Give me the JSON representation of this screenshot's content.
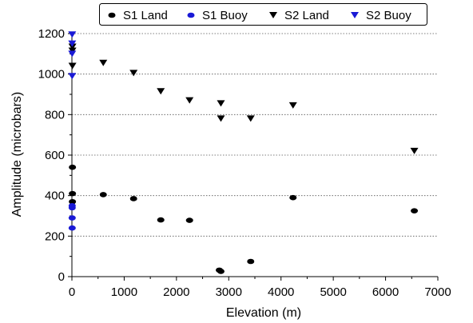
{
  "chart_data": {
    "type": "scatter",
    "title": "",
    "xlabel": "Elevation (m)",
    "ylabel": "Amplitude (microbars)",
    "xlim": [
      0,
      7000
    ],
    "ylim": [
      0,
      1200
    ],
    "x_ticks": [
      0,
      1000,
      2000,
      3000,
      4000,
      5000,
      6000,
      7000
    ],
    "y_ticks": [
      0,
      200,
      400,
      600,
      800,
      1000,
      1200
    ],
    "grid": "horizontal dotted",
    "legend_position": "top",
    "series": [
      {
        "name": "S1 Land",
        "marker": "ellipse",
        "color": "#000000",
        "points": [
          {
            "x": 10,
            "y": 540
          },
          {
            "x": 10,
            "y": 410
          },
          {
            "x": 10,
            "y": 370
          },
          {
            "x": 600,
            "y": 405
          },
          {
            "x": 1180,
            "y": 385
          },
          {
            "x": 1700,
            "y": 280
          },
          {
            "x": 2250,
            "y": 278
          },
          {
            "x": 2820,
            "y": 32
          },
          {
            "x": 2850,
            "y": 26
          },
          {
            "x": 3420,
            "y": 75
          },
          {
            "x": 4230,
            "y": 390
          },
          {
            "x": 6550,
            "y": 325
          }
        ]
      },
      {
        "name": "S1 Buoy",
        "marker": "ellipse",
        "color": "#1a1ad6",
        "points": [
          {
            "x": 5,
            "y": 350
          },
          {
            "x": 5,
            "y": 340
          },
          {
            "x": 5,
            "y": 290
          },
          {
            "x": 5,
            "y": 240
          }
        ]
      },
      {
        "name": "S2 Land",
        "marker": "triangle-down",
        "color": "#000000",
        "points": [
          {
            "x": 10,
            "y": 1135
          },
          {
            "x": 10,
            "y": 1115
          },
          {
            "x": 10,
            "y": 1040
          },
          {
            "x": 600,
            "y": 1055
          },
          {
            "x": 1180,
            "y": 1005
          },
          {
            "x": 1700,
            "y": 915
          },
          {
            "x": 2250,
            "y": 870
          },
          {
            "x": 2850,
            "y": 855
          },
          {
            "x": 2850,
            "y": 780
          },
          {
            "x": 3420,
            "y": 780
          },
          {
            "x": 4230,
            "y": 845
          },
          {
            "x": 6550,
            "y": 620
          }
        ]
      },
      {
        "name": "S2 Buoy",
        "marker": "triangle-down",
        "color": "#1a1ad6",
        "points": [
          {
            "x": 5,
            "y": 1195
          },
          {
            "x": 5,
            "y": 1150
          },
          {
            "x": 5,
            "y": 1100
          },
          {
            "x": 5,
            "y": 990
          }
        ]
      }
    ]
  }
}
